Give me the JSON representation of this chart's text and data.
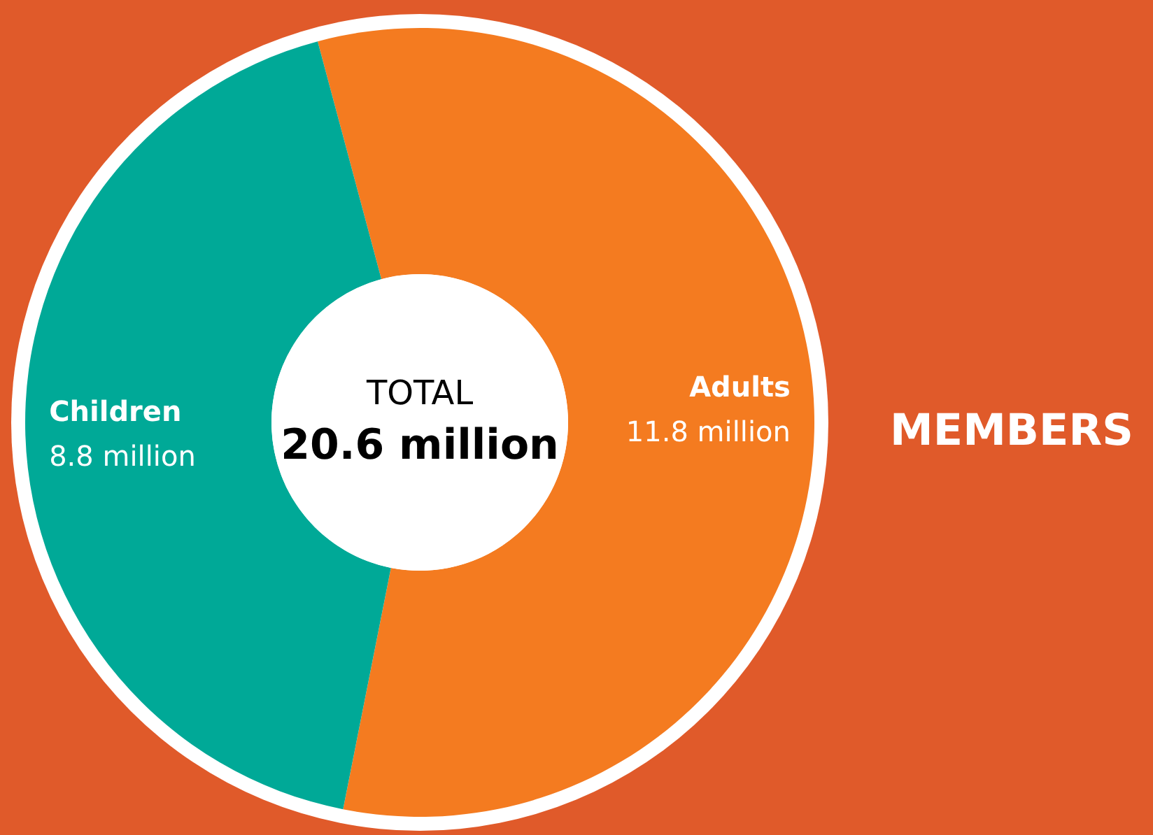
{
  "chart_data": {
    "type": "donut",
    "title": "MEMBERS",
    "categories": [
      "Adults",
      "Children"
    ],
    "values": [
      11.8,
      8.8
    ],
    "colors": [
      "#f47b20",
      "#00a997"
    ],
    "value_labels": [
      "11.8 million",
      "8.8 million"
    ],
    "annotations": [
      "TOTAL",
      "20.6 million"
    ]
  }
}
